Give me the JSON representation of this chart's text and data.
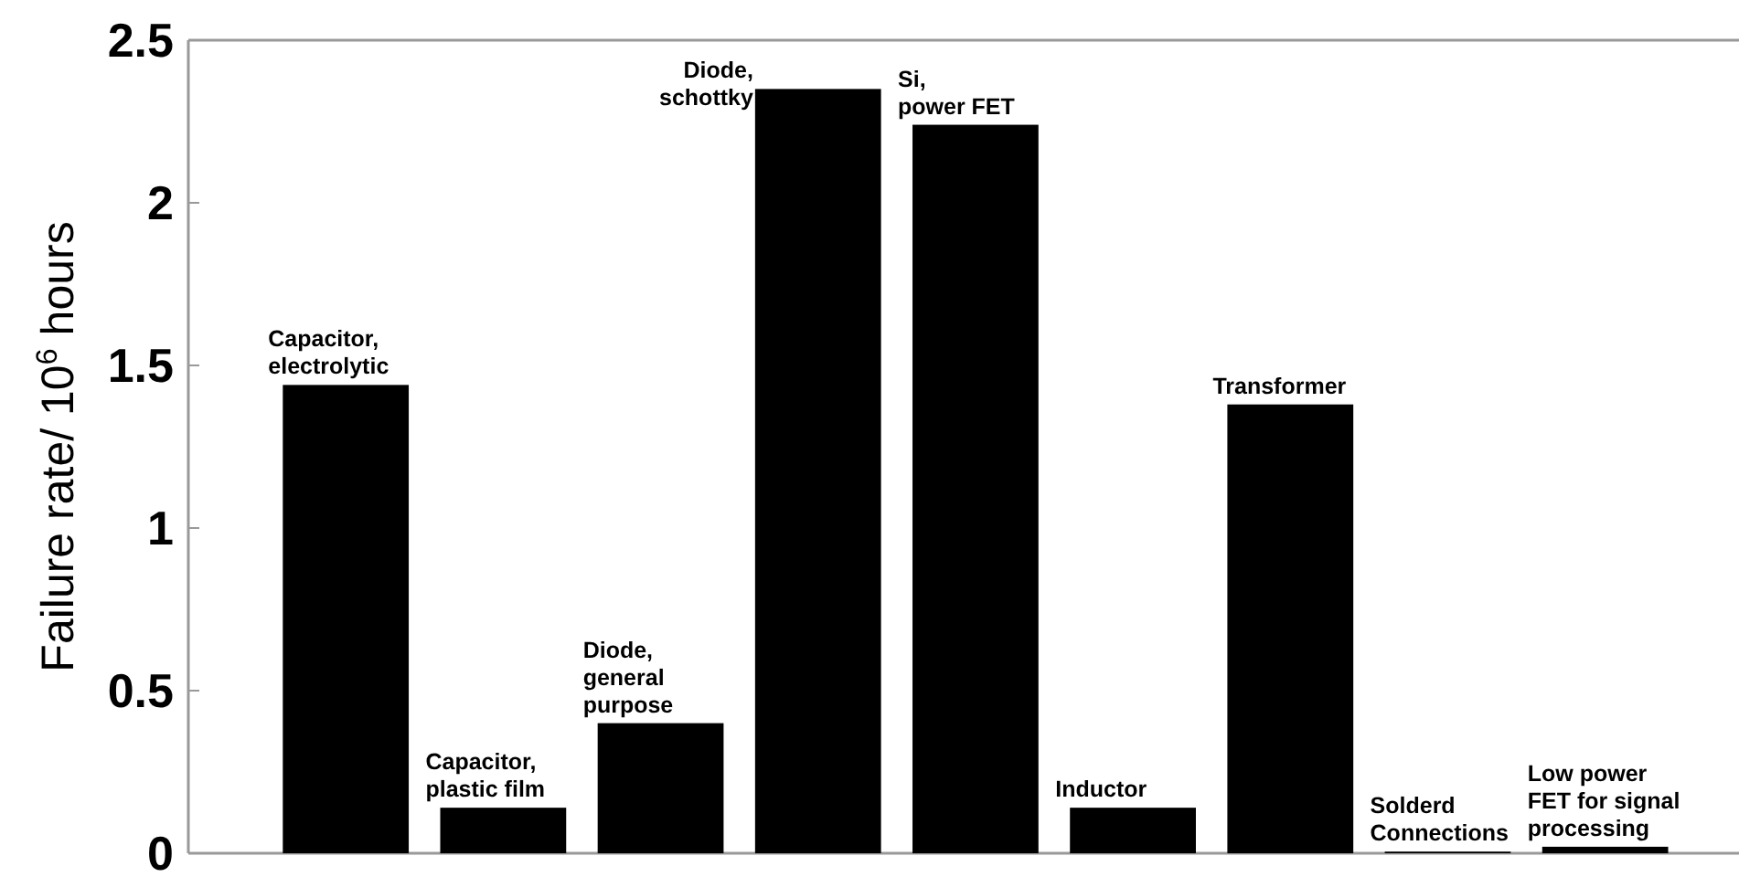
{
  "chart_data": {
    "type": "bar",
    "ylabel": "Failure rate/ 10$^{6}$ hours",
    "categories": [
      "Capacitor,\nelectrolytic",
      "Capacitor,\nplastic film",
      "Diode,\ngeneral\npurpose",
      "Diode,\nschottky",
      "Si,\npower FET",
      "Inductor",
      "Transformer",
      "Solderd\nConnections",
      "Low power\nFET for signal\nprocessing"
    ],
    "values": [
      1.44,
      0.14,
      0.4,
      2.35,
      2.24,
      0.14,
      1.38,
      0.005,
      0.02
    ],
    "color": "#000000",
    "ylim": [
      0,
      2.5
    ],
    "yticks": [
      0,
      0.5,
      1,
      1.5,
      2,
      2.5
    ],
    "grid": false
  }
}
